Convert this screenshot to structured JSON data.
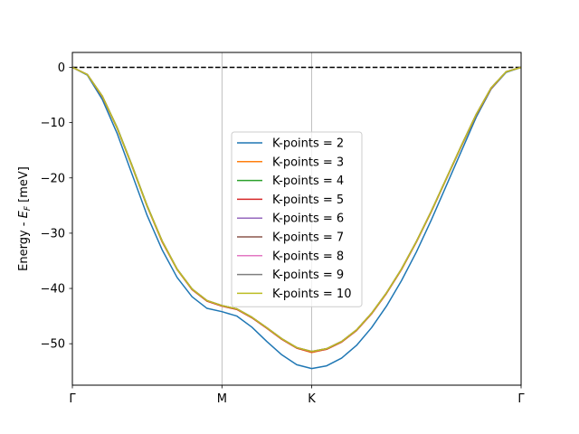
{
  "chart_data": {
    "type": "line",
    "ylabel": "Energy - E_F [meV]",
    "ylabel_main": "Energy - ",
    "ylabel_sym": "E",
    "ylabel_sub": "F",
    "ylabel_unit": " [meV]",
    "xlim": [
      0,
      6
    ],
    "ylim": [
      -57.5,
      2.7
    ],
    "x_ticks": [
      {
        "x": 0,
        "label": "Γ"
      },
      {
        "x": 2,
        "label": "M"
      },
      {
        "x": 3.2,
        "label": "K"
      },
      {
        "x": 6,
        "label": "Γ"
      }
    ],
    "y_ticks": [
      {
        "y": 0,
        "label": "0"
      },
      {
        "y": -10,
        "label": "−10"
      },
      {
        "y": -20,
        "label": "−20"
      },
      {
        "y": -30,
        "label": "−30"
      },
      {
        "y": -40,
        "label": "−40"
      },
      {
        "y": -50,
        "label": "−50"
      }
    ],
    "vertical_lines": [
      2,
      3.2
    ],
    "reference_line": {
      "y": 0,
      "style": "dashed",
      "color": "#000000"
    },
    "legend_position": "center",
    "x": [
      0,
      0.2,
      0.4,
      0.6,
      0.8,
      1.0,
      1.2,
      1.4,
      1.6,
      1.8,
      2.0,
      2.2,
      2.4,
      2.6,
      2.8,
      3.0,
      3.2,
      3.4,
      3.6,
      3.8,
      4.0,
      4.2,
      4.4,
      4.6,
      4.8,
      5.0,
      5.2,
      5.4,
      5.6,
      5.8,
      6.0
    ],
    "series": [
      {
        "name": "K-points = 2",
        "color": "#1f77b4",
        "values": [
          0,
          -1.4,
          -5.8,
          -12.0,
          -19.4,
          -26.8,
          -33.0,
          -38.0,
          -41.5,
          -43.6,
          -44.2,
          -45.0,
          -47.0,
          -49.6,
          -52.0,
          -53.8,
          -54.5,
          -54.0,
          -52.6,
          -50.3,
          -47.1,
          -43.2,
          -38.6,
          -33.4,
          -27.6,
          -21.4,
          -15.2,
          -9.0,
          -3.9,
          -0.9,
          0
        ]
      },
      {
        "name": "K-points = 3",
        "color": "#ff7f0e",
        "values": [
          0,
          -1.3,
          -5.3,
          -11.1,
          -18.0,
          -25.2,
          -31.6,
          -36.6,
          -40.2,
          -42.3,
          -43.2,
          -43.8,
          -45.3,
          -47.2,
          -49.2,
          -50.8,
          -51.6,
          -51.0,
          -49.7,
          -47.6,
          -44.6,
          -40.9,
          -36.6,
          -31.6,
          -26.1,
          -20.2,
          -14.3,
          -8.6,
          -3.8,
          -0.8,
          0
        ]
      },
      {
        "name": "K-points = 4",
        "color": "#2ca02c",
        "values": [
          0,
          -1.3,
          -5.2,
          -10.9,
          -17.8,
          -25.0,
          -31.4,
          -36.5,
          -40.1,
          -42.2,
          -43.1,
          -43.7,
          -45.2,
          -47.1,
          -49.1,
          -50.7,
          -51.4,
          -50.9,
          -49.6,
          -47.5,
          -44.5,
          -40.8,
          -36.5,
          -31.5,
          -26.0,
          -20.1,
          -14.2,
          -8.5,
          -3.7,
          -0.8,
          0
        ]
      },
      {
        "name": "K-points = 5",
        "color": "#d62728",
        "values": [
          0,
          -1.3,
          -5.3,
          -11.0,
          -17.9,
          -25.1,
          -31.5,
          -36.5,
          -40.2,
          -42.3,
          -43.2,
          -43.8,
          -45.3,
          -47.2,
          -49.2,
          -50.8,
          -51.5,
          -51.0,
          -49.7,
          -47.6,
          -44.6,
          -40.9,
          -36.6,
          -31.6,
          -26.1,
          -20.2,
          -14.3,
          -8.6,
          -3.8,
          -0.8,
          0
        ]
      },
      {
        "name": "K-points = 6",
        "color": "#9467bd",
        "values": [
          0,
          -1.3,
          -5.2,
          -11.0,
          -17.9,
          -25.1,
          -31.4,
          -36.5,
          -40.1,
          -42.2,
          -43.1,
          -43.7,
          -45.2,
          -47.1,
          -49.1,
          -50.7,
          -51.4,
          -50.9,
          -49.6,
          -47.5,
          -44.5,
          -40.8,
          -36.5,
          -31.5,
          -26.0,
          -20.1,
          -14.2,
          -8.5,
          -3.7,
          -0.8,
          0
        ]
      },
      {
        "name": "K-points = 7",
        "color": "#8c564b",
        "values": [
          0,
          -1.3,
          -5.2,
          -11.0,
          -17.9,
          -25.1,
          -31.4,
          -36.5,
          -40.1,
          -42.2,
          -43.1,
          -43.7,
          -45.2,
          -47.1,
          -49.1,
          -50.7,
          -51.4,
          -50.9,
          -49.6,
          -47.5,
          -44.5,
          -40.8,
          -36.5,
          -31.5,
          -26.0,
          -20.1,
          -14.2,
          -8.5,
          -3.7,
          -0.8,
          0
        ]
      },
      {
        "name": "K-points = 8",
        "color": "#e377c2",
        "values": [
          0,
          -1.3,
          -5.2,
          -11.0,
          -17.9,
          -25.1,
          -31.4,
          -36.5,
          -40.1,
          -42.2,
          -43.1,
          -43.7,
          -45.2,
          -47.1,
          -49.1,
          -50.7,
          -51.4,
          -50.9,
          -49.6,
          -47.5,
          -44.5,
          -40.8,
          -36.5,
          -31.5,
          -26.0,
          -20.1,
          -14.2,
          -8.5,
          -3.7,
          -0.8,
          0
        ]
      },
      {
        "name": "K-points = 9",
        "color": "#7f7f7f",
        "values": [
          0,
          -1.3,
          -5.2,
          -11.0,
          -17.9,
          -25.1,
          -31.4,
          -36.5,
          -40.1,
          -42.2,
          -43.1,
          -43.7,
          -45.2,
          -47.1,
          -49.1,
          -50.7,
          -51.4,
          -50.9,
          -49.6,
          -47.5,
          -44.5,
          -40.8,
          -36.5,
          -31.5,
          -26.0,
          -20.1,
          -14.2,
          -8.5,
          -3.7,
          -0.8,
          0
        ]
      },
      {
        "name": "K-points = 10",
        "color": "#bcbd22",
        "values": [
          0,
          -1.3,
          -5.2,
          -11.0,
          -17.9,
          -25.1,
          -31.4,
          -36.5,
          -40.1,
          -42.2,
          -43.1,
          -43.7,
          -45.2,
          -47.1,
          -49.1,
          -50.7,
          -51.4,
          -50.9,
          -49.6,
          -47.5,
          -44.5,
          -40.8,
          -36.5,
          -31.5,
          -26.0,
          -20.1,
          -14.2,
          -8.5,
          -3.7,
          -0.8,
          0
        ]
      }
    ]
  }
}
